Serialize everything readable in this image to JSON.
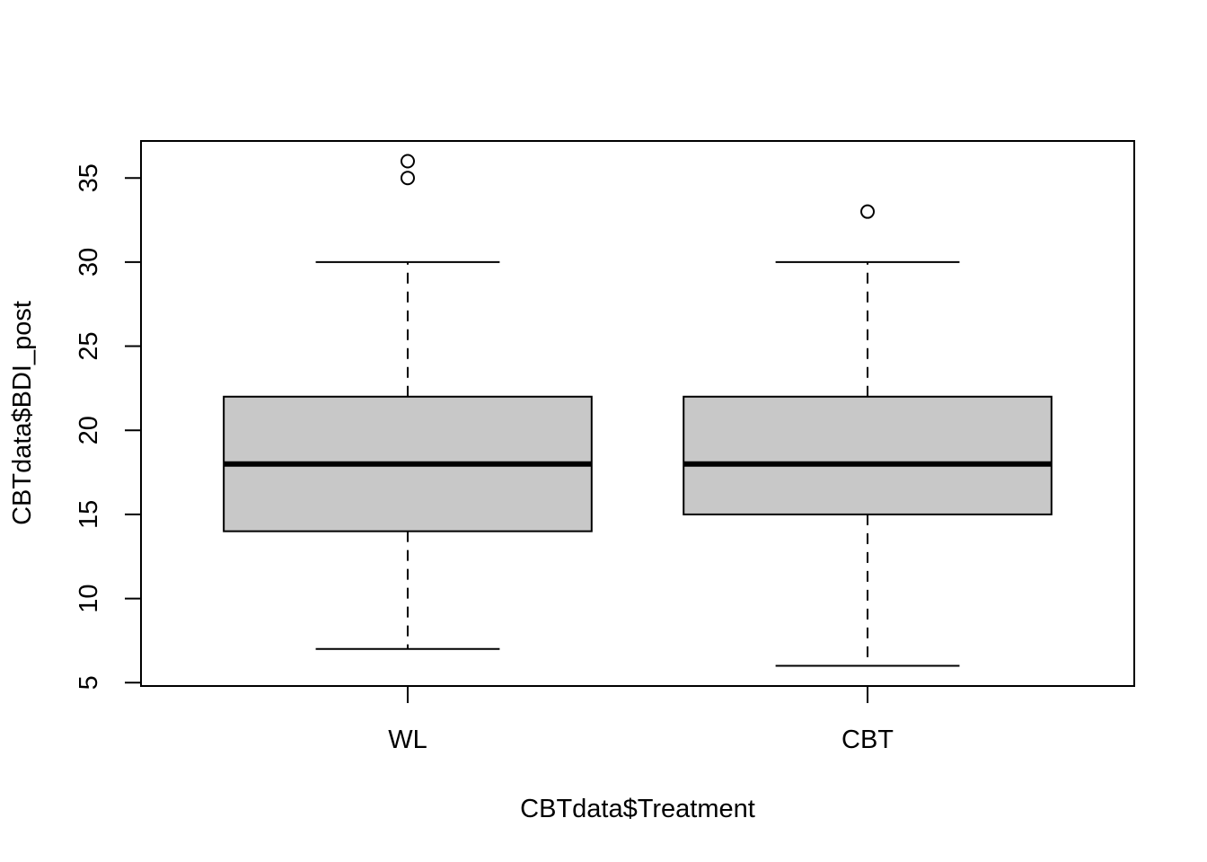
{
  "chart_data": {
    "type": "box",
    "title": "",
    "xlabel": "CBTdata$Treatment",
    "ylabel": "CBTdata$BDI_post",
    "ylim": [
      4.8,
      37.2
    ],
    "yticks": [
      5,
      10,
      15,
      20,
      25,
      30,
      35
    ],
    "categories": [
      "WL",
      "CBT"
    ],
    "boxes": [
      {
        "category": "WL",
        "lower_whisker": 7,
        "q1": 14,
        "median": 18,
        "q3": 22,
        "upper_whisker": 30,
        "outliers": [
          35,
          36
        ]
      },
      {
        "category": "CBT",
        "lower_whisker": 6,
        "q1": 15,
        "median": 18,
        "q3": 22,
        "upper_whisker": 30,
        "outliers": [
          33
        ]
      }
    ],
    "grid": false,
    "legend": "none"
  },
  "colors": {
    "box_fill": "#c8c8c8",
    "line": "#000000",
    "background": "#ffffff"
  }
}
